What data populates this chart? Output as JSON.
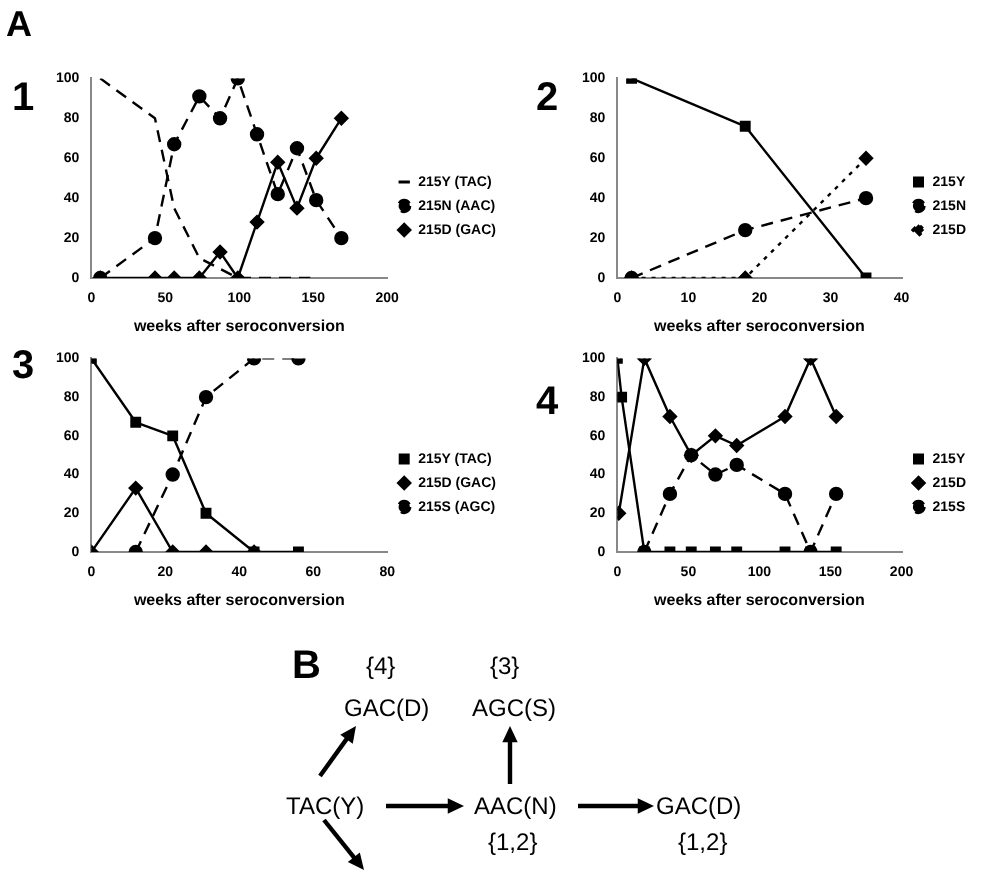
{
  "chart_data": [
    {
      "type": "line",
      "title": "1",
      "annotations": [
        "A"
      ],
      "xlabel": "weeks after seroconversion",
      "xlim": [
        0,
        200
      ],
      "xticks": [
        0,
        50,
        100,
        150,
        200
      ],
      "ylim": [
        0,
        100
      ],
      "yticks": [
        0,
        20,
        40,
        60,
        80,
        100
      ],
      "grid": false,
      "legend": "right",
      "series": [
        {
          "name": "215Y (TAC)",
          "color": "#000000",
          "line_style": "dashed",
          "marker": "none",
          "x": [
            6,
            43,
            56,
            73,
            99,
            148
          ],
          "values": [
            100,
            80,
            35,
            10,
            0,
            0
          ]
        },
        {
          "name": "215N (AAC)",
          "color": "#000000",
          "line_style": "dashed",
          "marker": "circle",
          "x": [
            6,
            43,
            56,
            73,
            87,
            99,
            112,
            126,
            139,
            152,
            169
          ],
          "values": [
            0,
            20,
            67,
            91,
            80,
            100,
            72,
            42,
            65,
            39,
            20
          ]
        },
        {
          "name": "215D (GAC)",
          "color": "#000000",
          "line_style": "solid",
          "marker": "diamond",
          "x": [
            6,
            43,
            56,
            73,
            87,
            99,
            112,
            126,
            139,
            152,
            169
          ],
          "values": [
            0,
            0,
            0,
            0,
            13,
            0,
            28,
            58,
            35,
            60,
            80
          ]
        }
      ]
    },
    {
      "type": "line",
      "title": "2",
      "xlabel": "weeks after seroconversion",
      "xlim": [
        0,
        40
      ],
      "xticks": [
        0,
        10,
        20,
        30,
        40
      ],
      "ylim": [
        0,
        100
      ],
      "yticks": [
        0,
        20,
        40,
        60,
        80,
        100
      ],
      "grid": false,
      "legend": "right",
      "series": [
        {
          "name": "215Y",
          "color": "#000000",
          "line_style": "solid",
          "marker": "square",
          "x": [
            2,
            18,
            35
          ],
          "values": [
            100,
            76,
            0
          ]
        },
        {
          "name": "215N",
          "color": "#000000",
          "line_style": "dashed",
          "marker": "circle",
          "x": [
            2,
            18,
            35
          ],
          "values": [
            0,
            24,
            40
          ]
        },
        {
          "name": "215D",
          "color": "#000000",
          "line_style": "dotted",
          "marker": "diamond",
          "x": [
            2,
            18,
            35
          ],
          "values": [
            0,
            0,
            60
          ]
        }
      ]
    },
    {
      "type": "line",
      "title": "3",
      "xlabel": "weeks after seroconversion",
      "xlim": [
        0,
        80
      ],
      "xticks": [
        0,
        20,
        40,
        60,
        80
      ],
      "ylim": [
        0,
        100
      ],
      "yticks": [
        0,
        20,
        40,
        60,
        80,
        100
      ],
      "grid": false,
      "legend": "right",
      "series": [
        {
          "name": "215Y (TAC)",
          "color": "#000000",
          "line_style": "solid",
          "marker": "square",
          "x": [
            0,
            12,
            22,
            31,
            44,
            56
          ],
          "values": [
            100,
            67,
            60,
            20,
            0,
            0
          ]
        },
        {
          "name": "215D (GAC)",
          "color": "#000000",
          "line_style": "solid",
          "marker": "diamond",
          "x": [
            0,
            12,
            22,
            31,
            44
          ],
          "values": [
            0,
            33,
            0,
            0,
            0
          ]
        },
        {
          "name": "215S (AGC)",
          "color": "#000000",
          "line_style": "dashed",
          "marker": "circle",
          "x": [
            12,
            22,
            31,
            44,
            56
          ],
          "values": [
            0,
            40,
            80,
            100,
            100
          ]
        }
      ]
    },
    {
      "type": "line",
      "title": "4",
      "xlabel": "weeks after seroconversion",
      "xlim": [
        0,
        200
      ],
      "xticks": [
        0,
        50,
        100,
        150,
        200
      ],
      "ylim": [
        0,
        100
      ],
      "yticks": [
        0,
        20,
        40,
        60,
        80,
        100
      ],
      "grid": false,
      "legend": "right",
      "series": [
        {
          "name": "215Y",
          "color": "#000000",
          "line_style": "solid",
          "marker": "square",
          "x": [
            0,
            3,
            19,
            37,
            52,
            69,
            84,
            118,
            136,
            154
          ],
          "values": [
            100,
            80,
            0,
            0,
            0,
            0,
            0,
            0,
            0,
            0
          ]
        },
        {
          "name": "215D",
          "color": "#000000",
          "line_style": "solid",
          "marker": "diamond",
          "x": [
            1,
            19,
            37,
            52,
            69,
            84,
            118,
            136,
            154
          ],
          "values": [
            20,
            100,
            70,
            50,
            60,
            55,
            70,
            100,
            70
          ]
        },
        {
          "name": "215S",
          "color": "#000000",
          "line_style": "dashed",
          "marker": "circle",
          "x": [
            19,
            37,
            52,
            69,
            84,
            118,
            136,
            154
          ],
          "values": [
            0,
            30,
            50,
            40,
            45,
            30,
            0,
            30
          ]
        }
      ]
    },
    {
      "type": "other",
      "title": "B",
      "annotations": [
        "{4}",
        "GAC(D)",
        "{3}",
        "AGC(S)",
        "TAC(Y)",
        "AAC(N)",
        "{1,2}",
        "GAC(D)",
        "{1,2}"
      ]
    }
  ]
}
